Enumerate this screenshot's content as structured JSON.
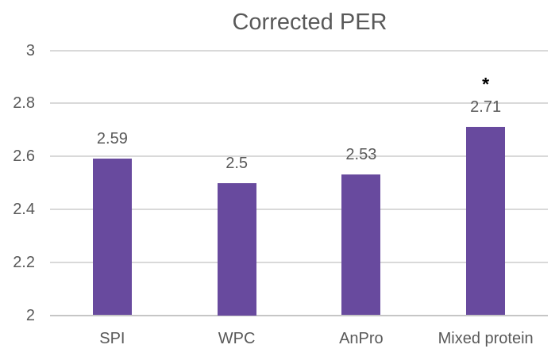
{
  "title": "Corrected PER",
  "colors": {
    "bar": "#684a9e",
    "text": "#595959",
    "gridline": "#d9d9d9",
    "axis_line": "#c6c6c6",
    "annotation": "#000000",
    "background": "#ffffff"
  },
  "chart_data": {
    "type": "bar",
    "title": "Corrected PER",
    "categories": [
      "SPI",
      "WPC",
      "AnPro",
      "Mixed protein"
    ],
    "values": [
      2.59,
      2.5,
      2.53,
      2.71
    ],
    "data_labels": [
      "2.59",
      "2.5",
      "2.53",
      "2.71"
    ],
    "annotations": [
      {
        "category_index": 3,
        "text": "*"
      }
    ],
    "xlabel": "",
    "ylabel": "",
    "ylim": [
      2,
      3
    ],
    "yticks": [
      3,
      2.8,
      2.6,
      2.4,
      2.2,
      2
    ],
    "ytick_labels": [
      "3",
      "2.8",
      "2.6",
      "2.4",
      "2.2",
      "2"
    ],
    "grid": true,
    "legend": false
  }
}
